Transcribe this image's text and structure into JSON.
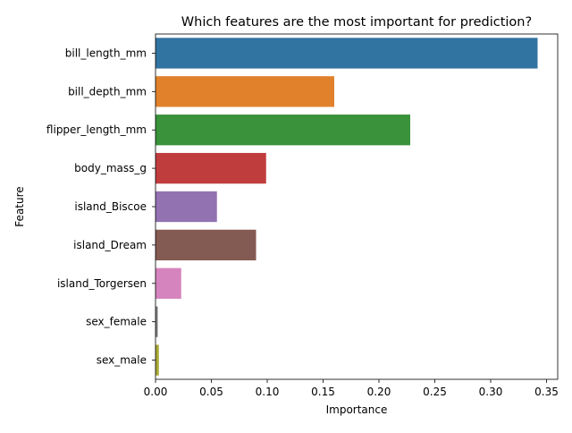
{
  "chart_data": {
    "type": "bar",
    "orientation": "horizontal",
    "title": "Which features are the most important for prediction?",
    "xlabel": "Importance",
    "ylabel": "Feature",
    "categories": [
      "bill_length_mm",
      "bill_depth_mm",
      "flipper_length_mm",
      "body_mass_g",
      "island_Biscoe",
      "island_Dream",
      "island_Torgersen",
      "sex_female",
      "sex_male"
    ],
    "values": [
      0.342,
      0.16,
      0.228,
      0.099,
      0.055,
      0.09,
      0.023,
      0.002,
      0.003
    ],
    "colors": [
      "#3274a1",
      "#e1812c",
      "#3a923a",
      "#c03d3e",
      "#9372b2",
      "#845b53",
      "#d684bd",
      "#7f7f7f",
      "#a9aa35"
    ],
    "xlim": [
      0,
      0.36
    ],
    "xticks": [
      0.0,
      0.05,
      0.1,
      0.15,
      0.2,
      0.25,
      0.3,
      0.35
    ],
    "xtick_labels": [
      "0.00",
      "0.05",
      "0.10",
      "0.15",
      "0.20",
      "0.25",
      "0.30",
      "0.35"
    ],
    "grid": false,
    "legend": "none"
  }
}
